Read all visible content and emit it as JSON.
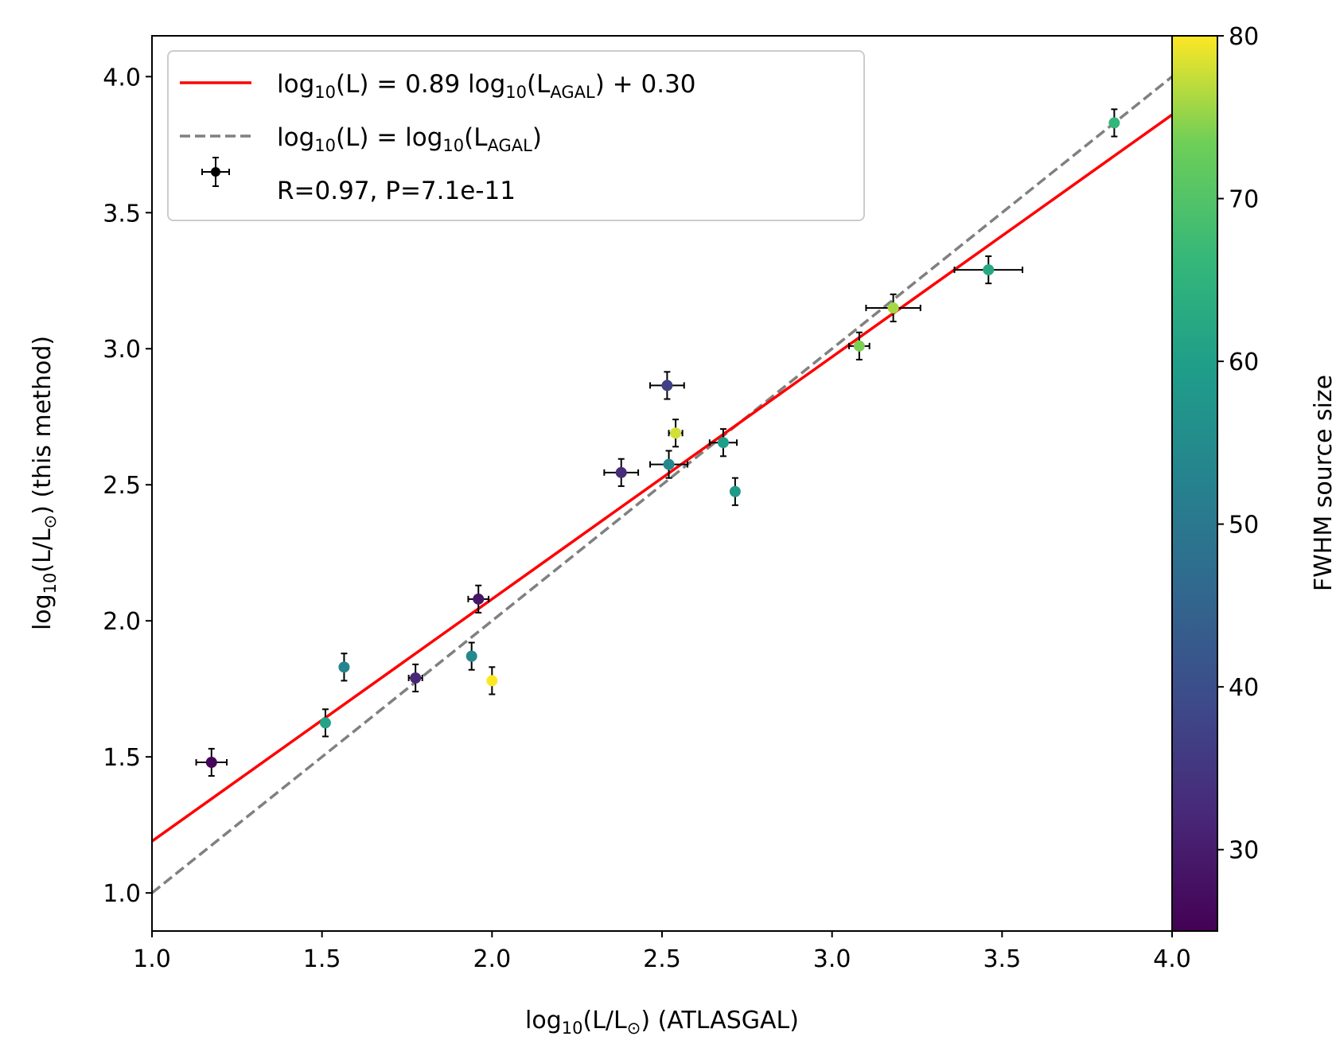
{
  "chart_data": {
    "type": "scatter",
    "xlabel": "log10(L/L⊙) (ATLASGAL)",
    "ylabel": "log10(L/L⊙) (this method)",
    "xlim": [
      1.0,
      4.0
    ],
    "ylim": [
      0.86,
      4.15
    ],
    "x_ticks": [
      "1.0",
      "1.5",
      "2.0",
      "2.5",
      "3.0",
      "3.5",
      "4.0"
    ],
    "y_ticks": [
      "1.0",
      "1.5",
      "2.0",
      "2.5",
      "3.0",
      "3.5",
      "4.0"
    ],
    "fit_line": {
      "label": "log10(L) = 0.89 log10(LAGAL) + 0.30",
      "slope": 0.89,
      "intercept": 0.3,
      "color": "#ff0000"
    },
    "identity_line": {
      "label": "log10(L) = log10(LAGAL)",
      "slope": 1.0,
      "intercept": 0.0,
      "color": "#808080"
    },
    "points_label": "R=0.97, P=7.1e-11",
    "colorbar": {
      "label": "FWHM source size",
      "range": [
        25,
        80
      ],
      "ticks": [
        "30",
        "40",
        "50",
        "60",
        "70",
        "80"
      ],
      "colormap": "viridis"
    },
    "points": [
      {
        "x": 1.175,
        "y": 1.48,
        "xerr": 0.045,
        "yerr": 0.05,
        "size": 26
      },
      {
        "x": 1.51,
        "y": 1.625,
        "xerr": 0.0,
        "yerr": 0.05,
        "size": 61
      },
      {
        "x": 1.565,
        "y": 1.83,
        "xerr": 0.0,
        "yerr": 0.05,
        "size": 53
      },
      {
        "x": 1.775,
        "y": 1.79,
        "xerr": 0.02,
        "yerr": 0.05,
        "size": 32
      },
      {
        "x": 1.94,
        "y": 1.87,
        "xerr": 0.0,
        "yerr": 0.05,
        "size": 54
      },
      {
        "x": 1.96,
        "y": 2.08,
        "xerr": 0.03,
        "yerr": 0.05,
        "size": 29
      },
      {
        "x": 2.0,
        "y": 1.78,
        "xerr": 0.0,
        "yerr": 0.05,
        "size": 80
      },
      {
        "x": 2.38,
        "y": 2.545,
        "xerr": 0.05,
        "yerr": 0.05,
        "size": 33
      },
      {
        "x": 2.515,
        "y": 2.865,
        "xerr": 0.05,
        "yerr": 0.05,
        "size": 37
      },
      {
        "x": 2.52,
        "y": 2.575,
        "xerr": 0.055,
        "yerr": 0.05,
        "size": 54
      },
      {
        "x": 2.54,
        "y": 2.69,
        "xerr": 0.02,
        "yerr": 0.05,
        "size": 78
      },
      {
        "x": 2.68,
        "y": 2.655,
        "xerr": 0.04,
        "yerr": 0.05,
        "size": 60
      },
      {
        "x": 2.715,
        "y": 2.475,
        "xerr": 0.0,
        "yerr": 0.05,
        "size": 59
      },
      {
        "x": 3.08,
        "y": 3.01,
        "xerr": 0.03,
        "yerr": 0.05,
        "size": 74
      },
      {
        "x": 3.18,
        "y": 3.15,
        "xerr": 0.08,
        "yerr": 0.05,
        "size": 76
      },
      {
        "x": 3.46,
        "y": 3.29,
        "xerr": 0.1,
        "yerr": 0.05,
        "size": 62
      },
      {
        "x": 3.83,
        "y": 3.83,
        "xerr": 0.0,
        "yerr": 0.05,
        "size": 66
      }
    ]
  }
}
